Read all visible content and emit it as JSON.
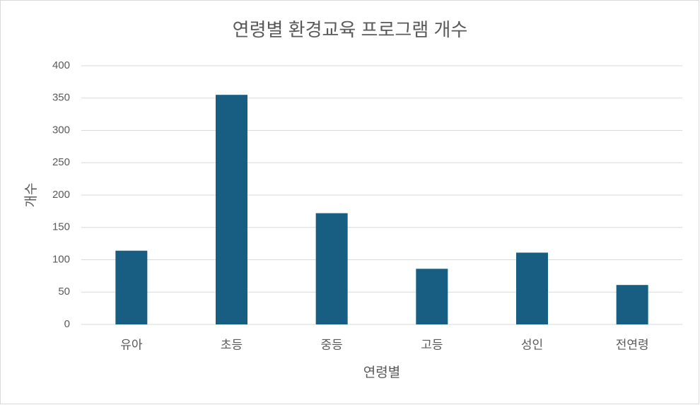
{
  "chart_data": {
    "type": "bar",
    "title": "연령별 환경교육 프로그램 개수",
    "x_label": "연령별",
    "y_label": "개수",
    "categories": [
      "유아",
      "초등",
      "중등",
      "고등",
      "성인",
      "전연령"
    ],
    "values": [
      114,
      355,
      172,
      86,
      111,
      61
    ],
    "color": "#175e82",
    "ylim": [
      0,
      400
    ],
    "yticks": [
      0,
      50,
      100,
      150,
      200,
      250,
      300,
      350,
      400
    ],
    "grid": true
  }
}
